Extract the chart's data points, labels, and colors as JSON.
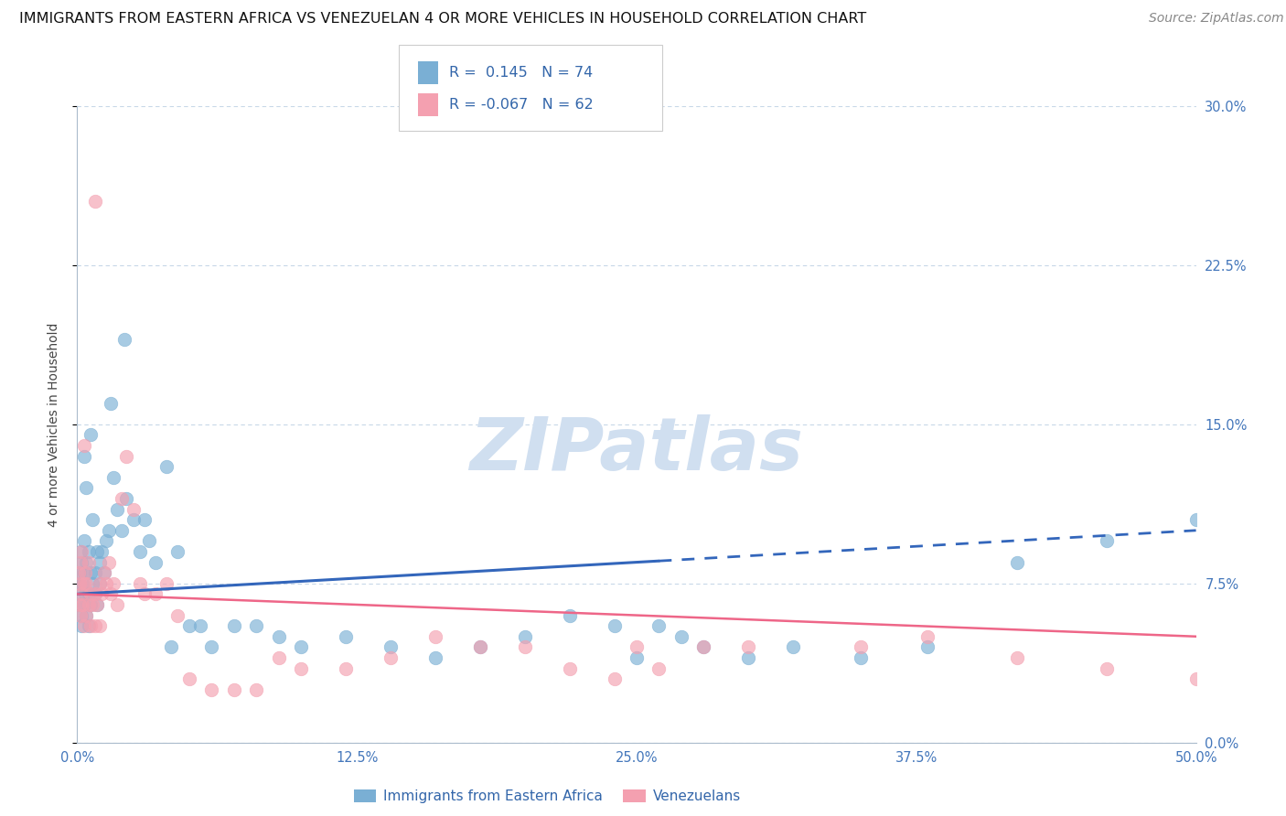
{
  "title": "IMMIGRANTS FROM EASTERN AFRICA VS VENEZUELAN 4 OR MORE VEHICLES IN HOUSEHOLD CORRELATION CHART",
  "source": "Source: ZipAtlas.com",
  "ylabel": "4 or more Vehicles in Household",
  "xlabel_vals": [
    0.0,
    12.5,
    25.0,
    37.5,
    50.0
  ],
  "ylabel_vals": [
    0.0,
    7.5,
    15.0,
    22.5,
    30.0
  ],
  "xlim": [
    0.0,
    50.0
  ],
  "ylim": [
    0.0,
    30.0
  ],
  "legend_box": {
    "blue_r": " 0.145",
    "blue_n": "74",
    "pink_r": "-0.067",
    "pink_n": "62"
  },
  "blue_color": "#7AAFD4",
  "pink_color": "#F4A0B0",
  "blue_line_color": "#3366BB",
  "pink_line_color": "#EE6688",
  "watermark": "ZIPatlas",
  "watermark_color": "#D0DFF0",
  "background_color": "#FFFFFF",
  "grid_color": "#C8D8E8",
  "title_fontsize": 11.5,
  "source_fontsize": 10,
  "axis_label_fontsize": 10,
  "tick_fontsize": 10.5,
  "blue_line_y0": 7.0,
  "blue_line_y50": 10.0,
  "blue_solid_end_x": 26.0,
  "blue_solid_end_y": 8.56,
  "pink_line_y0": 7.0,
  "pink_line_y50": 5.0,
  "blue_scatter_x": [
    0.1,
    0.1,
    0.1,
    0.15,
    0.15,
    0.2,
    0.2,
    0.2,
    0.25,
    0.3,
    0.3,
    0.3,
    0.35,
    0.4,
    0.4,
    0.5,
    0.5,
    0.5,
    0.6,
    0.6,
    0.7,
    0.7,
    0.8,
    0.8,
    0.9,
    0.9,
    1.0,
    1.0,
    1.1,
    1.2,
    1.3,
    1.4,
    1.5,
    1.6,
    1.8,
    2.0,
    2.2,
    2.5,
    2.8,
    3.0,
    3.2,
    3.5,
    4.0,
    4.5,
    5.0,
    5.5,
    6.0,
    7.0,
    8.0,
    9.0,
    10.0,
    12.0,
    14.0,
    16.0,
    18.0,
    20.0,
    22.0,
    24.0,
    25.0,
    26.0,
    27.0,
    28.0,
    30.0,
    32.0,
    35.0,
    38.0,
    42.0,
    46.0,
    50.0,
    0.6,
    0.4,
    0.3,
    4.2,
    2.1
  ],
  "blue_scatter_y": [
    7.5,
    6.5,
    8.0,
    7.0,
    9.0,
    6.0,
    8.5,
    5.5,
    7.5,
    8.0,
    6.5,
    9.5,
    7.0,
    8.5,
    6.0,
    7.0,
    9.0,
    5.5,
    8.0,
    6.5,
    7.5,
    10.5,
    8.0,
    7.0,
    9.0,
    6.5,
    8.5,
    7.5,
    9.0,
    8.0,
    9.5,
    10.0,
    16.0,
    12.5,
    11.0,
    10.0,
    11.5,
    10.5,
    9.0,
    10.5,
    9.5,
    8.5,
    13.0,
    9.0,
    5.5,
    5.5,
    4.5,
    5.5,
    5.5,
    5.0,
    4.5,
    5.0,
    4.5,
    4.0,
    4.5,
    5.0,
    6.0,
    5.5,
    4.0,
    5.5,
    5.0,
    4.5,
    4.0,
    4.5,
    4.0,
    4.5,
    8.5,
    9.5,
    10.5,
    14.5,
    12.0,
    13.5,
    4.5,
    19.0
  ],
  "pink_scatter_x": [
    0.05,
    0.1,
    0.1,
    0.15,
    0.15,
    0.2,
    0.2,
    0.25,
    0.3,
    0.3,
    0.35,
    0.4,
    0.4,
    0.5,
    0.5,
    0.6,
    0.6,
    0.7,
    0.8,
    0.8,
    0.9,
    1.0,
    1.0,
    1.1,
    1.2,
    1.3,
    1.4,
    1.5,
    1.6,
    1.8,
    2.0,
    2.2,
    2.5,
    2.8,
    3.0,
    3.5,
    4.0,
    4.5,
    5.0,
    6.0,
    7.0,
    8.0,
    9.0,
    10.0,
    12.0,
    14.0,
    16.0,
    18.0,
    20.0,
    22.0,
    24.0,
    25.0,
    26.0,
    28.0,
    30.0,
    35.0,
    38.0,
    42.0,
    46.0,
    50.0,
    0.8,
    0.3
  ],
  "pink_scatter_y": [
    8.0,
    7.5,
    6.5,
    8.5,
    6.0,
    7.0,
    9.0,
    6.5,
    7.5,
    5.5,
    8.0,
    6.0,
    7.5,
    8.5,
    6.5,
    7.0,
    5.5,
    6.5,
    7.0,
    5.5,
    6.5,
    7.5,
    5.5,
    7.0,
    8.0,
    7.5,
    8.5,
    7.0,
    7.5,
    6.5,
    11.5,
    13.5,
    11.0,
    7.5,
    7.0,
    7.0,
    7.5,
    6.0,
    3.0,
    2.5,
    2.5,
    2.5,
    4.0,
    3.5,
    3.5,
    4.0,
    5.0,
    4.5,
    4.5,
    3.5,
    3.0,
    4.5,
    3.5,
    4.5,
    4.5,
    4.5,
    5.0,
    4.0,
    3.5,
    3.0,
    25.5,
    14.0
  ]
}
